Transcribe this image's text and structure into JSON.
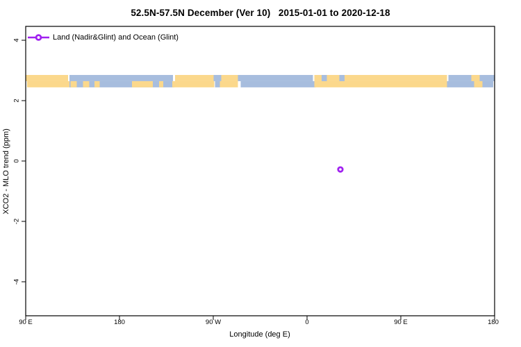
{
  "title": "52.5N-57.5N December (Ver 10)   2015-01-01 to 2020-12-18",
  "legend": {
    "entry": "Land (Nadir&Glint) and Ocean (Glint)",
    "marker": "open-circle-on-line",
    "marker_color": "#A020F0"
  },
  "colors": {
    "land": "#FBD88C",
    "ocean": "#A7BDDE",
    "marker": "#A020F0",
    "axis": "#000000",
    "background": "#FFFFFF"
  },
  "chart_data": {
    "type": "scatter",
    "title": "52.5N-57.5N December (Ver 10)   2015-01-01 to 2020-12-18",
    "xlabel": "Longitude (deg E)",
    "ylabel": "XCO2 - MLO trend (ppm)",
    "grid": false,
    "legend_position": "top-left",
    "x_axis": {
      "start_deg": 90,
      "end_deg": 540,
      "tick_deg": [
        90,
        180,
        270,
        360,
        450,
        540
      ],
      "tick_labels": [
        "90 E",
        "180",
        "90 W",
        "0",
        "90 E",
        "180"
      ]
    },
    "y_axis": {
      "min": -5.1,
      "max": 4.5,
      "tick_values": [
        4,
        2,
        0,
        -2,
        -4
      ],
      "tick_labels": [
        "4",
        "2",
        "0",
        "-2",
        "-4"
      ]
    },
    "series": [
      {
        "name": "Land (Nadir&Glint) and Ocean (Glint)",
        "color": "#A020F0",
        "points": [
          {
            "lon_deg_e": 32,
            "value_ppm": -0.28
          }
        ]
      }
    ],
    "map_band": {
      "description": "land/ocean strip for latitude band 52.5N-57.5N drawn across plot",
      "value_range_ppm": [
        2.44,
        2.85
      ],
      "land_color": "#FBD88C",
      "ocean_color": "#A7BDDE",
      "segments": [
        {
          "from": 90,
          "to": 132,
          "type": "land"
        },
        {
          "from": 132,
          "to": 232,
          "type": "ocean"
        },
        {
          "from": 133,
          "to": 139,
          "type": "land",
          "half": "bottom"
        },
        {
          "from": 145,
          "to": 151,
          "type": "land",
          "half": "bottom"
        },
        {
          "from": 156,
          "to": 161,
          "type": "land",
          "half": "bottom"
        },
        {
          "from": 192,
          "to": 212,
          "type": "land",
          "half": "bottom"
        },
        {
          "from": 218,
          "to": 222,
          "type": "land",
          "half": "bottom"
        },
        {
          "from": 232,
          "to": 271,
          "type": "land"
        },
        {
          "from": 271,
          "to": 277,
          "type": "ocean"
        },
        {
          "from": 277,
          "to": 295,
          "type": "land"
        },
        {
          "from": 295,
          "to": 367,
          "type": "ocean"
        },
        {
          "from": 367,
          "to": 495,
          "type": "land"
        },
        {
          "from": 374,
          "to": 379,
          "type": "ocean",
          "half": "top"
        },
        {
          "from": 391,
          "to": 396,
          "type": "ocean",
          "half": "top"
        },
        {
          "from": 495,
          "to": 540,
          "type": "ocean"
        },
        {
          "from": 519,
          "to": 527,
          "type": "land"
        }
      ]
    }
  }
}
